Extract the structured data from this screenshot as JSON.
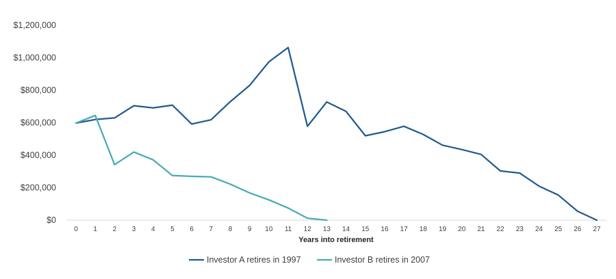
{
  "chart_data": {
    "type": "line",
    "title": "",
    "xlabel": "Years into retirement",
    "ylabel": "",
    "x": [
      0,
      1,
      2,
      3,
      4,
      5,
      6,
      7,
      8,
      9,
      10,
      11,
      12,
      13,
      14,
      15,
      16,
      17,
      18,
      19,
      20,
      21,
      22,
      23,
      24,
      25,
      26,
      27
    ],
    "ylim": [
      0,
      1200000
    ],
    "yticks": [
      0,
      200000,
      400000,
      600000,
      800000,
      1000000,
      1200000
    ],
    "ytick_labels": [
      "$0",
      "$200,000",
      "$400,000",
      "$600,000",
      "$800,000",
      "$1,000,000",
      "$1,200,000"
    ],
    "grid": false,
    "legend_position": "bottom",
    "series": [
      {
        "name": "Investor A retires in 1997",
        "color": "#215a8f",
        "values": [
          598000,
          620000,
          630000,
          705000,
          692000,
          708000,
          592000,
          618000,
          730000,
          830000,
          975000,
          1063000,
          578000,
          728000,
          670000,
          520000,
          545000,
          578000,
          528000,
          462000,
          435000,
          405000,
          303000,
          290000,
          210000,
          155000,
          55000,
          0
        ]
      },
      {
        "name": "Investor B retires in 2007",
        "color": "#4aaab8",
        "values": [
          598000,
          645000,
          342000,
          420000,
          372000,
          275000,
          270000,
          267000,
          222000,
          168000,
          125000,
          75000,
          12000,
          0,
          null,
          null,
          null,
          null,
          null,
          null,
          null,
          null,
          null,
          null,
          null,
          null,
          null,
          null
        ]
      }
    ]
  }
}
